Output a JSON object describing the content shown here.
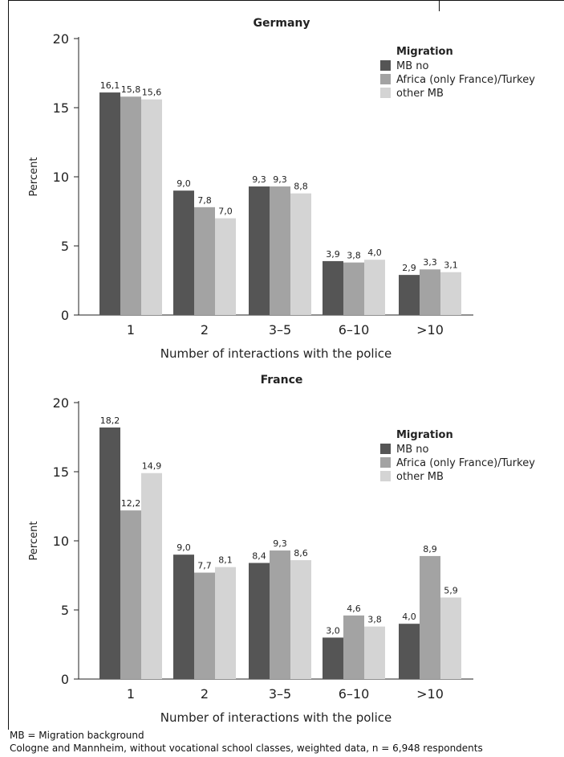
{
  "chart_data": [
    {
      "type": "bar",
      "title": "Germany",
      "xlabel": "Number of interactions with the police",
      "ylabel": "Percent",
      "ylim": [
        0,
        20
      ],
      "yticks": [
        0,
        5,
        10,
        15,
        20
      ],
      "categories": [
        "1",
        "2",
        "3–5",
        "6–10",
        ">10"
      ],
      "legend_title": "Migration",
      "legend_position": "top-right",
      "series": [
        {
          "name": "MB no",
          "color": "#555555",
          "values": [
            16.1,
            9.0,
            9.3,
            3.9,
            2.9
          ],
          "labels": [
            "16,1",
            "9,0",
            "9,3",
            "3,9",
            "2,9"
          ]
        },
        {
          "name": "Africa (only France)/Turkey",
          "color": "#a3a3a3",
          "values": [
            15.8,
            7.8,
            9.3,
            3.8,
            3.3
          ],
          "labels": [
            "15,8",
            "7,8",
            "9,3",
            "3,8",
            "3,3"
          ]
        },
        {
          "name": "other MB",
          "color": "#d4d4d4",
          "values": [
            15.6,
            7.0,
            8.8,
            4.0,
            3.1
          ],
          "labels": [
            "15,6",
            "7,0",
            "8,8",
            "4,0",
            "3,1"
          ]
        }
      ]
    },
    {
      "type": "bar",
      "title": "France",
      "xlabel": "Number of interactions with the police",
      "ylabel": "Percent",
      "ylim": [
        0,
        20
      ],
      "yticks": [
        0,
        5,
        10,
        15,
        20
      ],
      "categories": [
        "1",
        "2",
        "3–5",
        "6–10",
        ">10"
      ],
      "legend_title": "Migration",
      "legend_position": "top-right",
      "series": [
        {
          "name": "MB no",
          "color": "#555555",
          "values": [
            18.2,
            9.0,
            8.4,
            3.0,
            4.0
          ],
          "labels": [
            "18,2",
            "9,0",
            "8,4",
            "3,0",
            "4,0"
          ]
        },
        {
          "name": "Africa (only France)/Turkey",
          "color": "#a3a3a3",
          "values": [
            12.2,
            7.7,
            9.3,
            4.6,
            8.9
          ],
          "labels": [
            "12,2",
            "7,7",
            "9,3",
            "4,6",
            "8,9"
          ]
        },
        {
          "name": "other MB",
          "color": "#d4d4d4",
          "values": [
            14.9,
            8.1,
            8.6,
            3.8,
            5.9
          ],
          "labels": [
            "14,9",
            "8,1",
            "8,6",
            "3,8",
            "5,9"
          ]
        }
      ]
    }
  ],
  "footnotes": {
    "line1": "MB = Migration background",
    "line2": "Cologne and Mannheim, without vocational school classes, weighted data, n = 6,948 respondents"
  }
}
